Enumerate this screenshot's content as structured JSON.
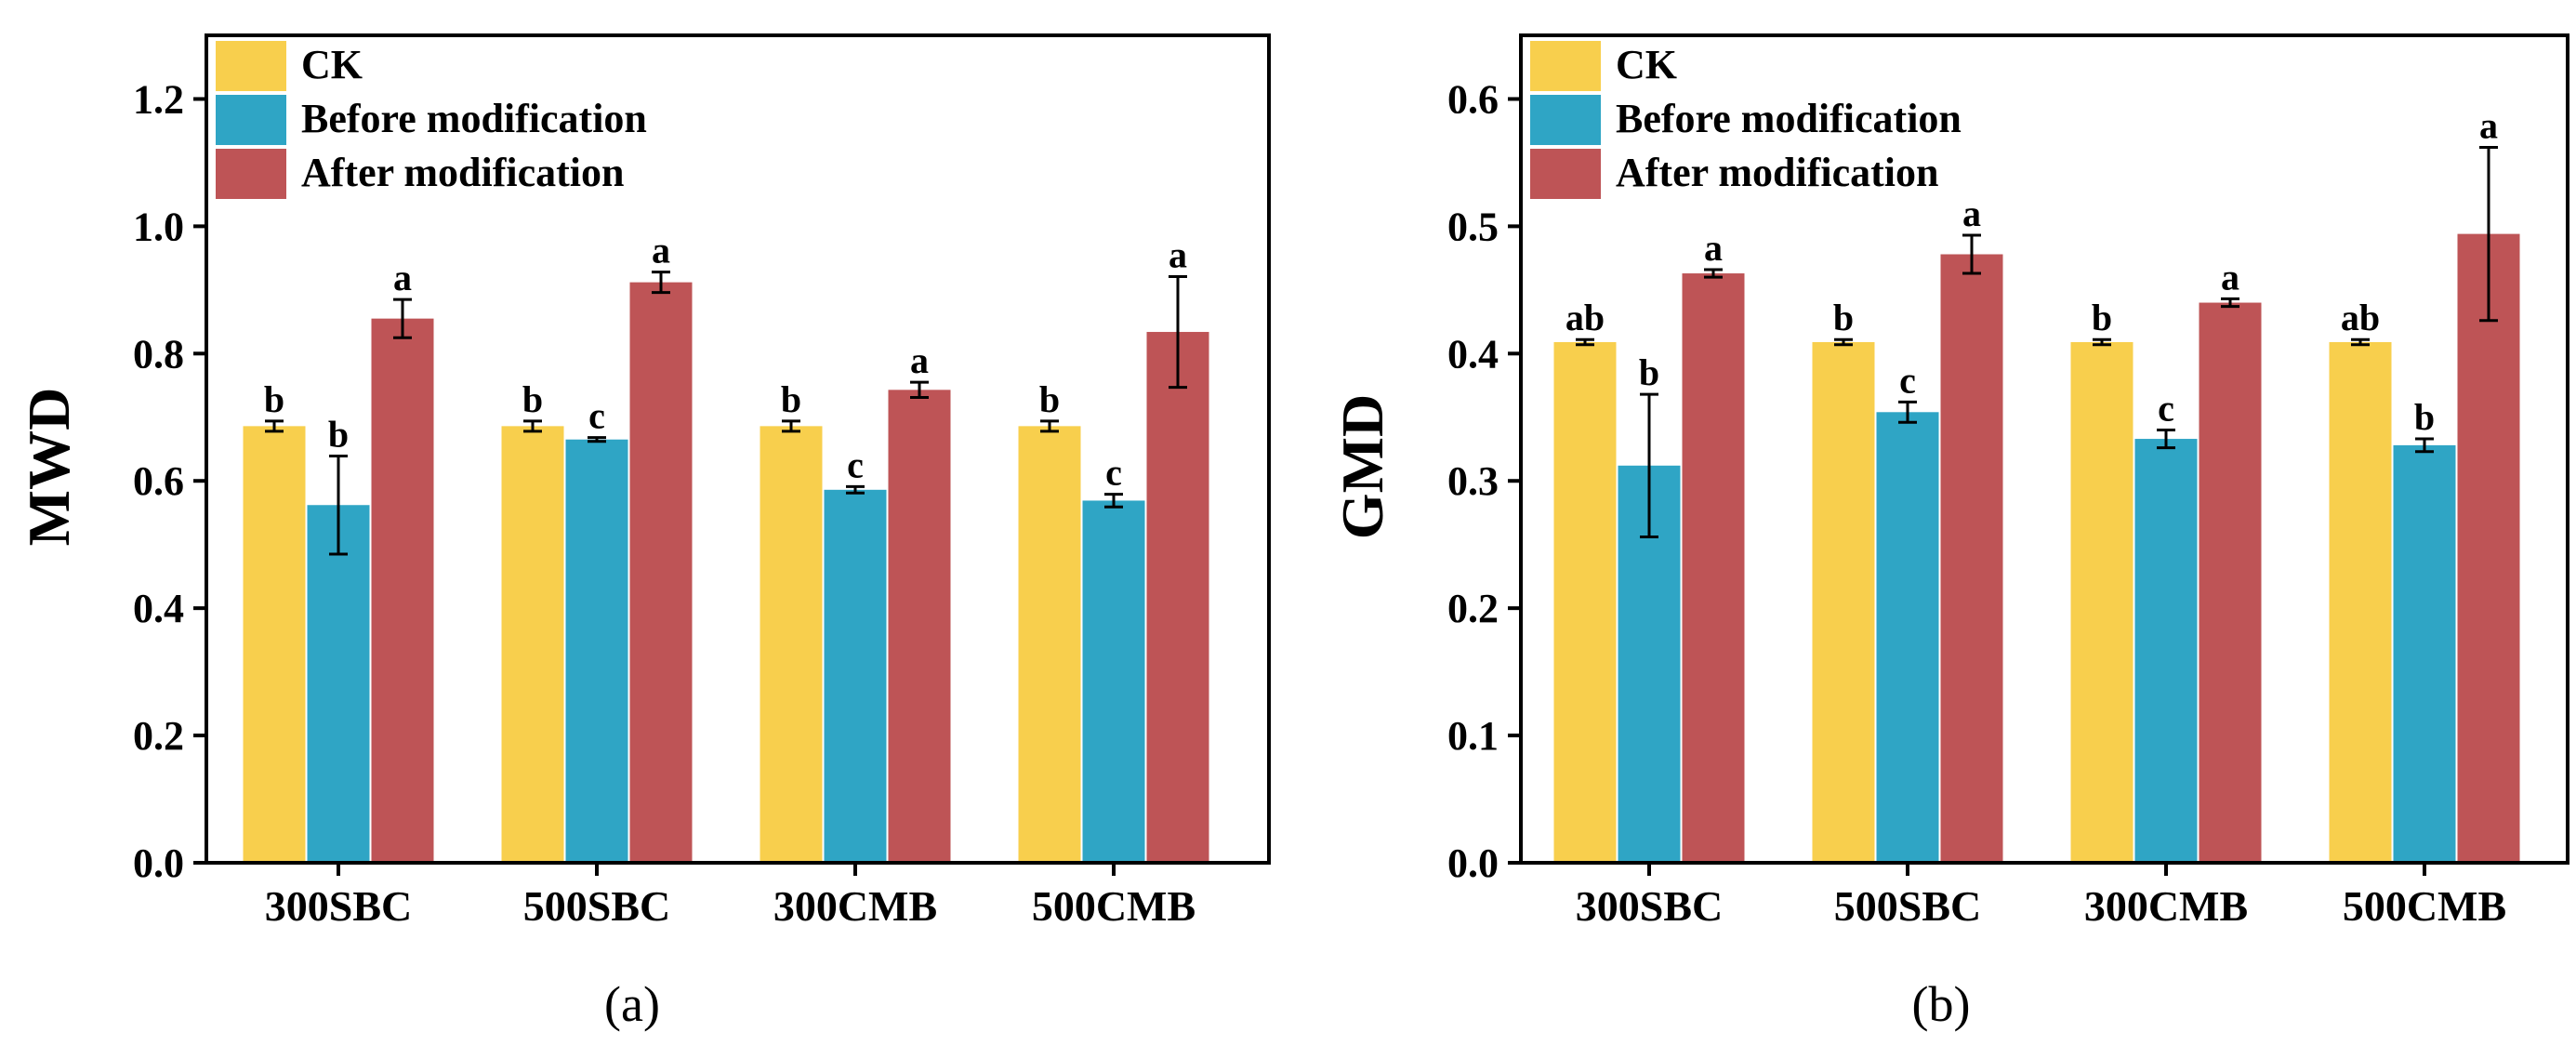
{
  "chart_data": [
    {
      "type": "bar",
      "panel_label": "(a)",
      "ylabel": "MWD",
      "xlabel": "",
      "ylim": [
        0,
        1.3
      ],
      "yticks": [
        "0.0",
        "0.2",
        "0.4",
        "0.6",
        "0.8",
        "1.0",
        "1.2"
      ],
      "categories": [
        "300SBC",
        "500SBC",
        "300CMB",
        "500CMB"
      ],
      "series": [
        {
          "name": "CK",
          "color": "#F8CF4D",
          "values": [
            0.686,
            0.686,
            0.686,
            0.686
          ],
          "errors": [
            0.008,
            0.008,
            0.008,
            0.008
          ],
          "letters": [
            "b",
            "b",
            "b",
            "b"
          ]
        },
        {
          "name": "Before modification",
          "color": "#2FA5C5",
          "values": [
            0.562,
            0.665,
            0.586,
            0.569
          ],
          "errors": [
            0.077,
            0.003,
            0.005,
            0.01
          ],
          "letters": [
            "b",
            "c",
            "c",
            "c"
          ]
        },
        {
          "name": "After modification",
          "color": "#BE5456",
          "values": [
            0.855,
            0.912,
            0.743,
            0.834
          ],
          "errors": [
            0.03,
            0.016,
            0.012,
            0.087
          ],
          "letters": [
            "a",
            "a",
            "a",
            "a"
          ]
        }
      ],
      "legend_position": "top-left"
    },
    {
      "type": "bar",
      "panel_label": "(b)",
      "ylabel": "GMD",
      "xlabel": "",
      "ylim": [
        0,
        0.65
      ],
      "yticks": [
        "0.0",
        "0.1",
        "0.2",
        "0.3",
        "0.4",
        "0.5",
        "0.6"
      ],
      "categories": [
        "300SBC",
        "500SBC",
        "300CMB",
        "500CMB"
      ],
      "series": [
        {
          "name": "CK",
          "color": "#F8CF4D",
          "values": [
            0.409,
            0.409,
            0.409,
            0.409
          ],
          "errors": [
            0.002,
            0.002,
            0.002,
            0.002
          ],
          "letters": [
            "ab",
            "b",
            "b",
            "ab"
          ]
        },
        {
          "name": "Before modification",
          "color": "#2FA5C5",
          "values": [
            0.312,
            0.354,
            0.333,
            0.328
          ],
          "errors": [
            0.056,
            0.008,
            0.007,
            0.005
          ],
          "letters": [
            "b",
            "c",
            "c",
            "b"
          ]
        },
        {
          "name": "After modification",
          "color": "#BE5456",
          "values": [
            0.463,
            0.478,
            0.44,
            0.494
          ],
          "errors": [
            0.003,
            0.015,
            0.003,
            0.068
          ],
          "letters": [
            "a",
            "a",
            "a",
            "a"
          ]
        }
      ],
      "legend_position": "top-left"
    }
  ]
}
